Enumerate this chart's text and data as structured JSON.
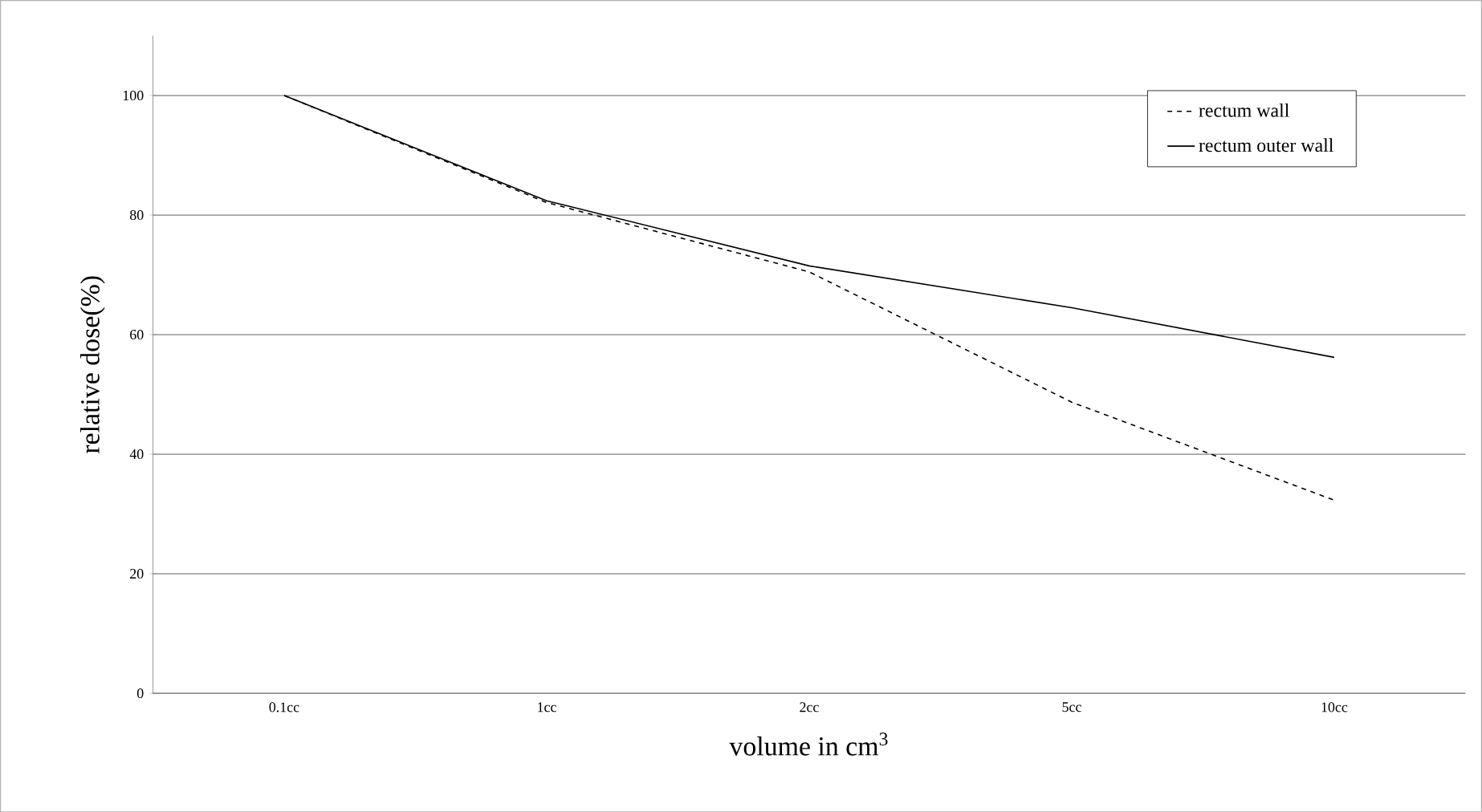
{
  "chart_data": {
    "type": "line",
    "xlabel": "volume in cm$^{3}$",
    "ylabel": "relative dose(%)",
    "categories": [
      "0.1cc",
      "1cc",
      "2cc",
      "5cc",
      "10cc"
    ],
    "series": [
      {
        "name": "rectum wall",
        "color": "#000000",
        "line_style": "dashed",
        "values": [
          100,
          82.1,
          70.5,
          48.7,
          32.3
        ]
      },
      {
        "name": "rectum outer wall",
        "color": "#000000",
        "line_style": "solid",
        "values": [
          100,
          82.4,
          71.5,
          64.5,
          56.2
        ]
      }
    ],
    "ylim": [
      0,
      110
    ],
    "yticks": [
      0,
      20,
      40,
      60,
      80,
      100
    ],
    "grid": "y",
    "legend": "top right",
    "marker": "none"
  }
}
